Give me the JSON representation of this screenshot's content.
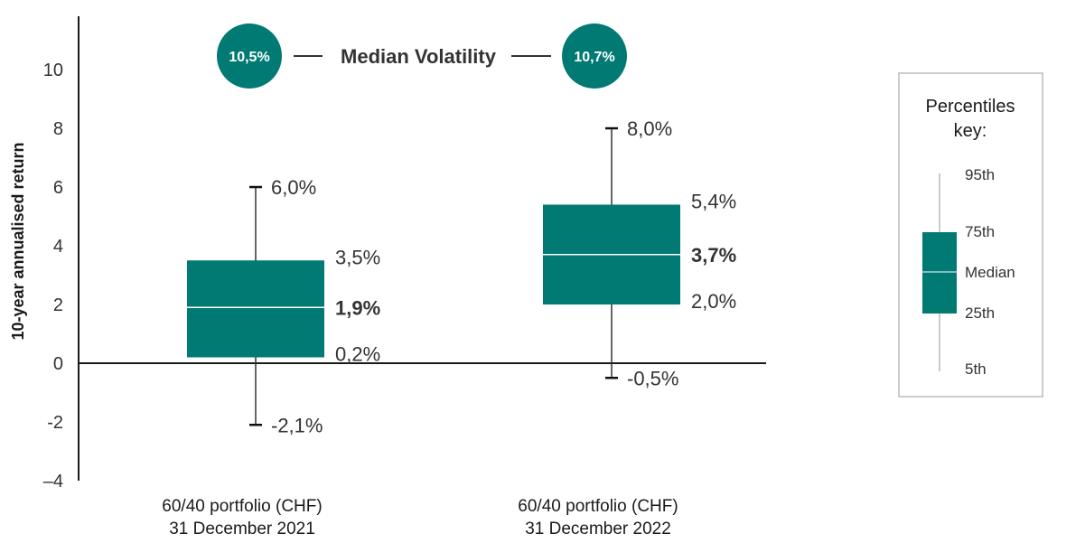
{
  "chart_data": {
    "type": "box",
    "ylabel": "10-year annualised return",
    "ylim": [
      -4,
      12
    ],
    "yticks": [
      "–4",
      "-2",
      "0",
      "2",
      "4",
      "6",
      "8",
      "10"
    ],
    "ytick_values": [
      -4,
      -2,
      0,
      2,
      4,
      6,
      8,
      10
    ],
    "categories": [
      {
        "line1": "60/40 portfolio (CHF)",
        "line2": "31 December 2021"
      },
      {
        "line1": "60/40 portfolio (CHF)",
        "line2": "31 December 2022"
      }
    ],
    "series": [
      {
        "p5": -2.1,
        "p25": 0.2,
        "median": 1.9,
        "p75": 3.5,
        "p95": 6.0,
        "labels": {
          "p5": "-2,1%",
          "p25": "0,2%",
          "median": "1,9%",
          "p75": "3,5%",
          "p95": "6,0%"
        }
      },
      {
        "p5": -0.5,
        "p25": 2.0,
        "median": 3.7,
        "p75": 5.4,
        "p95": 8.0,
        "labels": {
          "p5": "-0,5%",
          "p25": "2,0%",
          "median": "3,7%",
          "p75": "5,4%",
          "p95": "8,0%"
        }
      }
    ],
    "median_volatility": {
      "title": "Median Volatility",
      "values": [
        "10,5%",
        "10,7%"
      ]
    },
    "legend": {
      "title_line1": "Percentiles",
      "title_line2": "key:",
      "p95": "95th",
      "p75": "75th",
      "median": "Median",
      "p25": "25th",
      "p5": "5th"
    },
    "colors": {
      "box": "#007A72",
      "axis": "#1a1a1a",
      "whisker": "#333333",
      "legend_border": "#bbbbbb"
    }
  }
}
